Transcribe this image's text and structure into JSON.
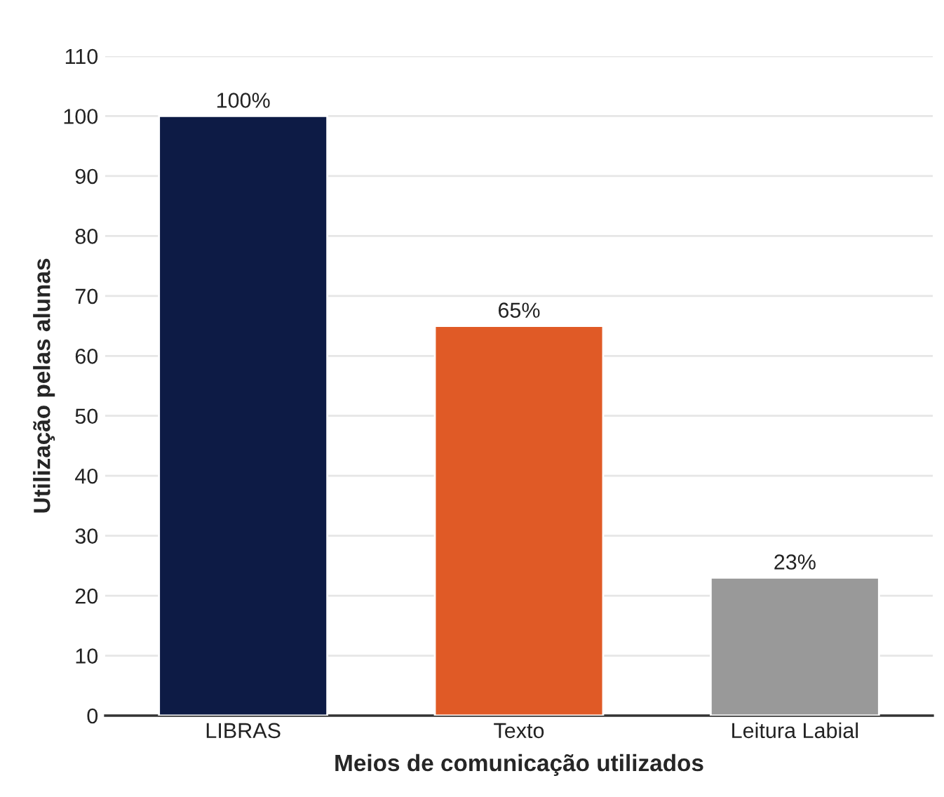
{
  "chart_data": {
    "type": "bar",
    "xlabel": "Meios de comunicação utilizados",
    "ylabel": "Utilização pelas alunas",
    "categories": [
      "LIBRAS",
      "Texto",
      "Leitura Labial"
    ],
    "values": [
      100,
      65,
      23
    ],
    "colors": [
      "#0d1b45",
      "#e05a26",
      "#999999"
    ],
    "value_labels": [
      "100%",
      "65%",
      "23%"
    ],
    "ylim": [
      0,
      110
    ],
    "yticks": [
      0,
      10,
      20,
      30,
      40,
      50,
      60,
      70,
      80,
      90,
      100,
      110
    ],
    "grid": "y"
  }
}
